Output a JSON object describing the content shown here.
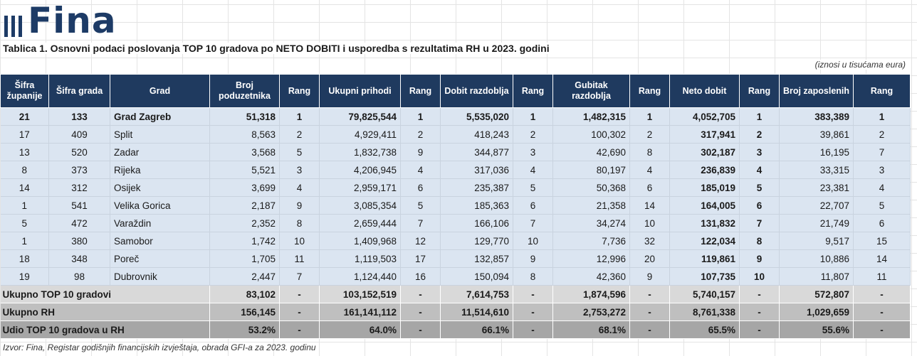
{
  "logo": {
    "text": "Fina"
  },
  "title": "Tablica 1. Osnovni podaci poslovanja TOP 10 gradova po NETO DOBITI i usporedba s rezultatima RH u 2023. godini",
  "units_note": "(iznosi u tisućama eura)",
  "headers": [
    "Šifra županije",
    "Šifra grada",
    "Grad",
    "Broj poduzetnika",
    "Rang",
    "Ukupni prihodi",
    "Rang",
    "Dobit razdoblja",
    "Rang",
    "Gubitak razdoblja",
    "Rang",
    "Neto dobit",
    "Rang",
    "Broj zaposlenih",
    "Rang"
  ],
  "rows": [
    [
      "21",
      "133",
      "Grad Zagreb",
      "51,318",
      "1",
      "79,825,544",
      "1",
      "5,535,020",
      "1",
      "1,482,315",
      "1",
      "4,052,705",
      "1",
      "383,389",
      "1"
    ],
    [
      "17",
      "409",
      "Split",
      "8,563",
      "2",
      "4,929,411",
      "2",
      "418,243",
      "2",
      "100,302",
      "2",
      "317,941",
      "2",
      "39,861",
      "2"
    ],
    [
      "13",
      "520",
      "Zadar",
      "3,568",
      "5",
      "1,832,738",
      "9",
      "344,877",
      "3",
      "42,690",
      "8",
      "302,187",
      "3",
      "16,195",
      "7"
    ],
    [
      "8",
      "373",
      "Rijeka",
      "5,521",
      "3",
      "4,206,945",
      "4",
      "317,036",
      "4",
      "80,197",
      "4",
      "236,839",
      "4",
      "33,315",
      "3"
    ],
    [
      "14",
      "312",
      "Osijek",
      "3,699",
      "4",
      "2,959,171",
      "6",
      "235,387",
      "5",
      "50,368",
      "6",
      "185,019",
      "5",
      "23,381",
      "4"
    ],
    [
      "1",
      "541",
      "Velika Gorica",
      "2,187",
      "9",
      "3,085,354",
      "5",
      "185,363",
      "6",
      "21,358",
      "14",
      "164,005",
      "6",
      "22,707",
      "5"
    ],
    [
      "5",
      "472",
      "Varaždin",
      "2,352",
      "8",
      "2,659,444",
      "7",
      "166,106",
      "7",
      "34,274",
      "10",
      "131,832",
      "7",
      "21,749",
      "6"
    ],
    [
      "1",
      "380",
      "Samobor",
      "1,742",
      "10",
      "1,409,968",
      "12",
      "129,770",
      "10",
      "7,736",
      "32",
      "122,034",
      "8",
      "9,517",
      "15"
    ],
    [
      "18",
      "348",
      "Poreč",
      "1,705",
      "11",
      "1,119,503",
      "17",
      "132,857",
      "9",
      "12,996",
      "20",
      "119,861",
      "9",
      "10,886",
      "14"
    ],
    [
      "19",
      "98",
      "Dubrovnik",
      "2,447",
      "7",
      "1,124,440",
      "16",
      "150,094",
      "8",
      "42,360",
      "9",
      "107,735",
      "10",
      "11,807",
      "11"
    ]
  ],
  "summary": [
    [
      "Ukupno TOP 10 gradovi",
      "83,102",
      "-",
      "103,152,519",
      "-",
      "7,614,753",
      "-",
      "1,874,596",
      "-",
      "5,740,157",
      "-",
      "572,807",
      "-"
    ],
    [
      "Ukupno RH",
      "156,145",
      "-",
      "161,141,112",
      "-",
      "11,514,610",
      "-",
      "2,753,272",
      "-",
      "8,761,338",
      "-",
      "1,029,659",
      "-"
    ],
    [
      "Udio TOP 10 gradova u RH",
      "53.2%",
      "-",
      "64.0%",
      "-",
      "66.1%",
      "-",
      "68.1%",
      "-",
      "65.5%",
      "-",
      "55.6%",
      "-"
    ]
  ],
  "source": "Izvor: Fina, Registar godišnjih financijskih izvještaja, obrada GFI-a za 2023. godinu",
  "colors": {
    "header_bg": "#1f3a5f",
    "row_bg": "#dbe5f1",
    "logo": "#1d3b66"
  }
}
